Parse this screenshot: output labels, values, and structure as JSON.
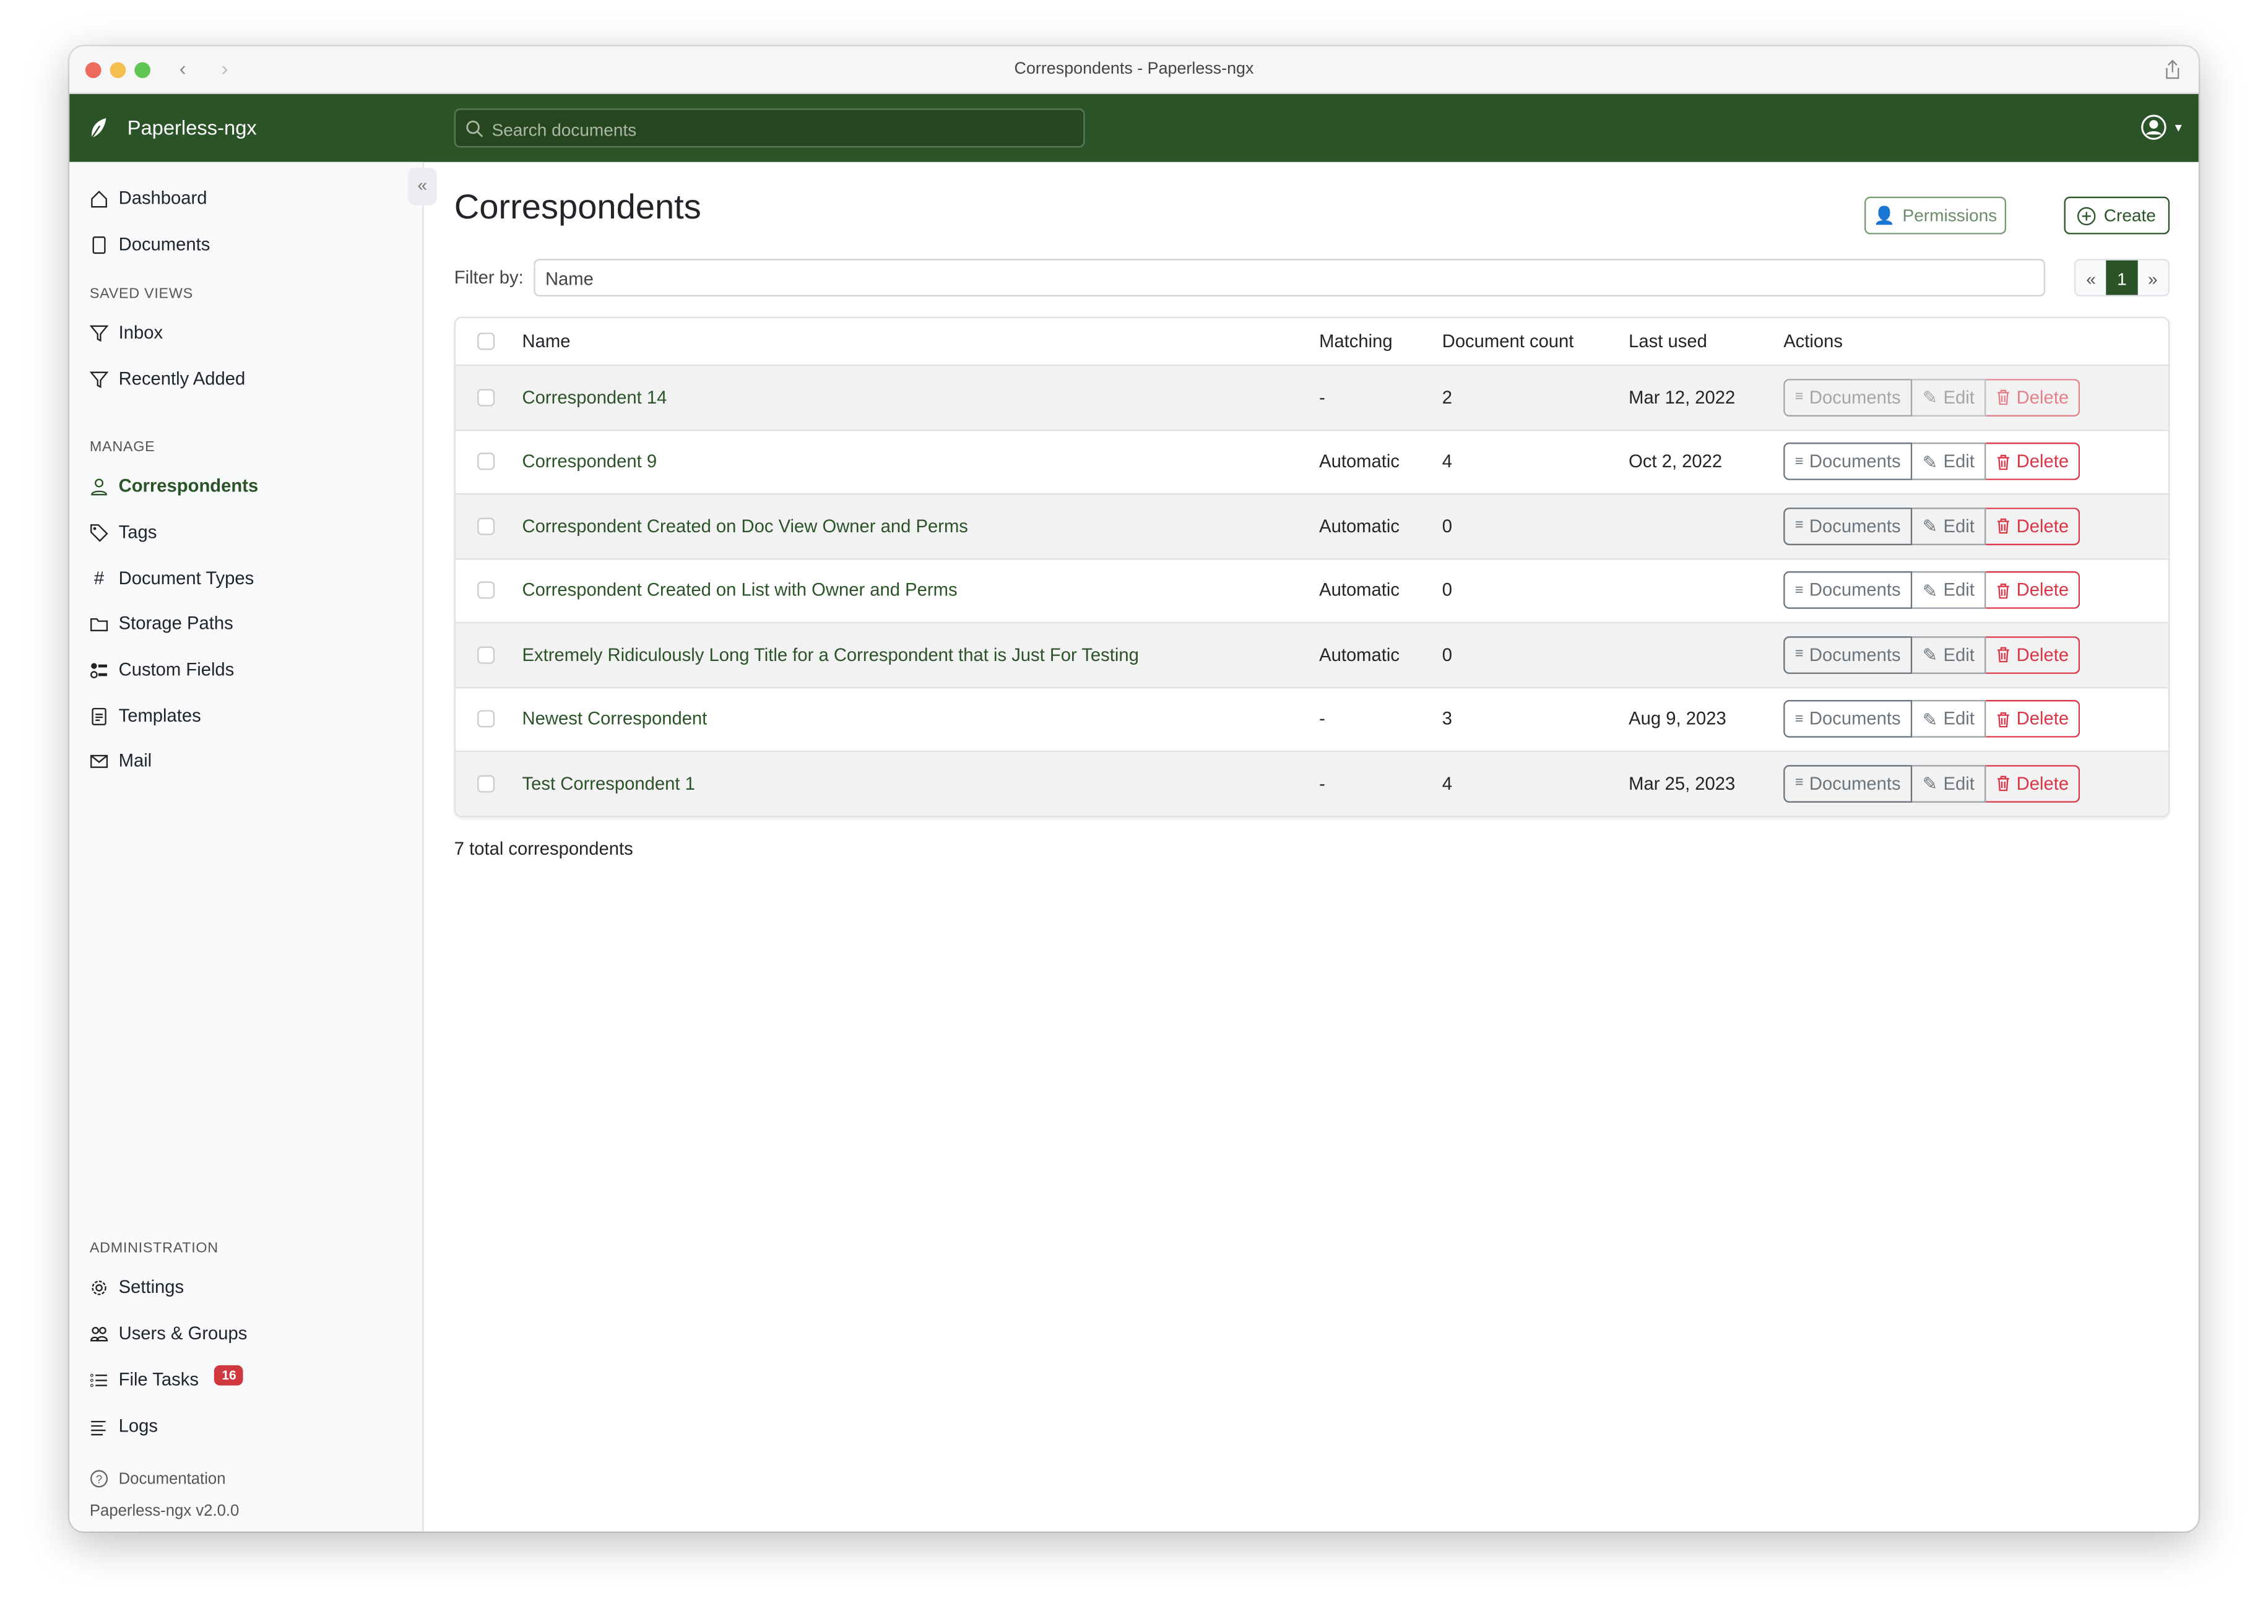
{
  "window": {
    "title": "Correspondents - Paperless-ngx"
  },
  "navbar": {
    "brand": "Paperless-ngx",
    "search_placeholder": "Search documents"
  },
  "sidebar": {
    "main": [
      {
        "label": "Dashboard",
        "icon": "house-icon"
      },
      {
        "label": "Documents",
        "icon": "files-icon"
      }
    ],
    "saved_views_heading": "SAVED VIEWS",
    "saved_views": [
      {
        "label": "Inbox",
        "icon": "funnel-icon"
      },
      {
        "label": "Recently Added",
        "icon": "funnel-icon"
      }
    ],
    "manage_heading": "MANAGE",
    "manage": [
      {
        "label": "Correspondents",
        "icon": "person-icon",
        "active": true
      },
      {
        "label": "Tags",
        "icon": "tags-icon"
      },
      {
        "label": "Document Types",
        "icon": "hash-icon"
      },
      {
        "label": "Storage Paths",
        "icon": "folder-icon"
      },
      {
        "label": "Custom Fields",
        "icon": "ui-radios-icon"
      },
      {
        "label": "Templates",
        "icon": "file-text-icon"
      },
      {
        "label": "Mail",
        "icon": "envelope-icon"
      }
    ],
    "admin_heading": "ADMINISTRATION",
    "admin": [
      {
        "label": "Settings",
        "icon": "gear-icon"
      },
      {
        "label": "Users & Groups",
        "icon": "people-icon"
      },
      {
        "label": "File Tasks",
        "icon": "list-task-icon",
        "badge": "16"
      },
      {
        "label": "Logs",
        "icon": "text-left-icon"
      }
    ],
    "documentation": "Documentation",
    "version": "Paperless-ngx v2.0.0"
  },
  "page": {
    "title": "Correspondents",
    "permissions_label": "Permissions",
    "create_label": "Create",
    "filter_label": "Filter by:",
    "filter_placeholder": "Name",
    "pager": {
      "prev": "«",
      "current": "1",
      "next": "»"
    },
    "total": "7 total correspondents"
  },
  "table": {
    "headers": {
      "name": "Name",
      "matching": "Matching",
      "count": "Document count",
      "last_used": "Last used",
      "actions": "Actions"
    },
    "action_labels": {
      "documents": "Documents",
      "edit": "Edit",
      "delete": "Delete"
    },
    "rows": [
      {
        "name": "Correspondent 14",
        "matching": "-",
        "count": "2",
        "last_used": "Mar 12, 2022",
        "actions_disabled": true
      },
      {
        "name": "Correspondent 9",
        "matching": "Automatic",
        "count": "4",
        "last_used": "Oct 2, 2022"
      },
      {
        "name": "Correspondent Created on Doc View Owner and Perms",
        "matching": "Automatic",
        "count": "0",
        "last_used": ""
      },
      {
        "name": "Correspondent Created on List with Owner and Perms",
        "matching": "Automatic",
        "count": "0",
        "last_used": ""
      },
      {
        "name": "Extremely Ridiculously Long Title for a Correspondent that is Just For Testing",
        "matching": "Automatic",
        "count": "0",
        "last_used": ""
      },
      {
        "name": "Newest Correspondent",
        "matching": "-",
        "count": "3",
        "last_used": "Aug 9, 2023"
      },
      {
        "name": "Test Correspondent 1",
        "matching": "-",
        "count": "4",
        "last_used": "Mar 25, 2023"
      }
    ]
  },
  "colors": {
    "brand": "#2b5328",
    "danger": "#dc3545",
    "badge": "#d0383f"
  }
}
